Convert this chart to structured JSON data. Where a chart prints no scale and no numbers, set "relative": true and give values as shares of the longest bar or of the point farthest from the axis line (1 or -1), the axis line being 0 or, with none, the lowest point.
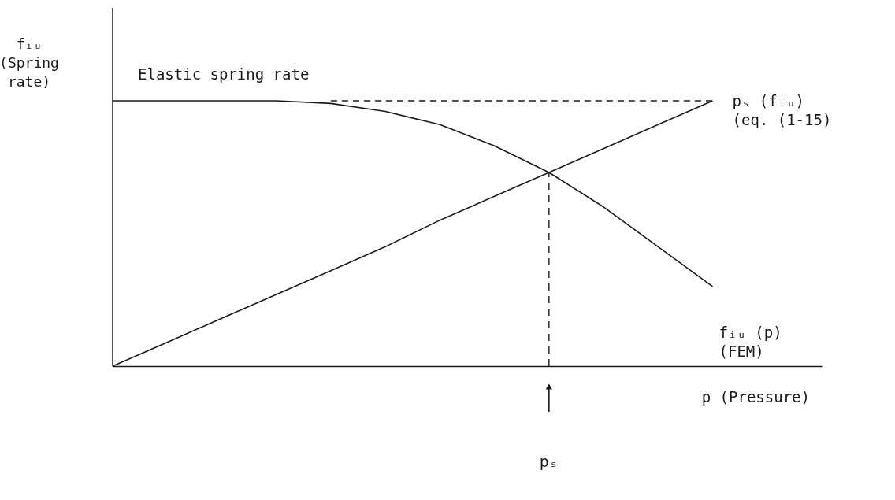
{
  "chart_data": {
    "type": "line",
    "relative": true,
    "xlabel": "p (Pressure)",
    "ylabel": "fᵢᵤ\n(Spring\nrate)",
    "annotations": [
      "Elastic spring rate",
      "pₛ"
    ],
    "tick_labels": false,
    "categories": [
      null,
      null,
      null,
      null,
      null,
      null,
      null,
      null,
      null,
      null,
      null,
      null,
      null,
      null
    ],
    "series": [
      {
        "name": "fᵢᵤ (p)\n(FEM)",
        "color": "#1a1a1a",
        "line_style": "solid",
        "values": [
          1,
          1,
          1,
          1,
          0.99,
          0.96,
          0.91,
          0.83,
          0.73,
          0.6,
          0.45,
          0.3,
          null,
          null
        ]
      },
      {
        "name": "pₛ (fᵢᵤ)\n(eq. (1-15)",
        "color": "#1a1a1a",
        "line_style": "solid",
        "values": [
          0,
          0.09,
          0.18,
          0.27,
          0.36,
          0.45,
          0.55,
          0.64,
          0.73,
          0.82,
          0.91,
          1,
          null,
          null
        ]
      },
      {
        "color": "#1a1a1a",
        "line_style": "dashed",
        "values": [
          null,
          null,
          null,
          null,
          1,
          1,
          1,
          1,
          1,
          1,
          1,
          1,
          null,
          null
        ]
      }
    ],
    "grid": false,
    "marker": "none"
  }
}
